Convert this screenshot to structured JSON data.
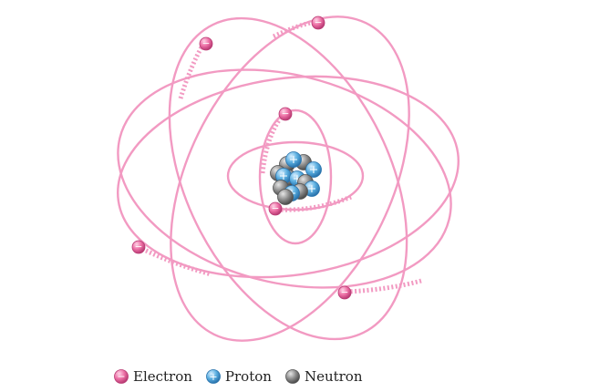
{
  "colors": {
    "orbit": "#f29ac2",
    "electron": "#e8609a",
    "proton": "#5aaee0",
    "neutron": "#8a8a8a"
  },
  "legend": {
    "electron": {
      "label": "Electron",
      "symbol": "−",
      "icon": "electron-icon"
    },
    "proton": {
      "label": "Proton",
      "symbol": "+",
      "icon": "proton-icon"
    },
    "neutron": {
      "label": "Neutron",
      "icon": "neutron-icon"
    }
  }
}
